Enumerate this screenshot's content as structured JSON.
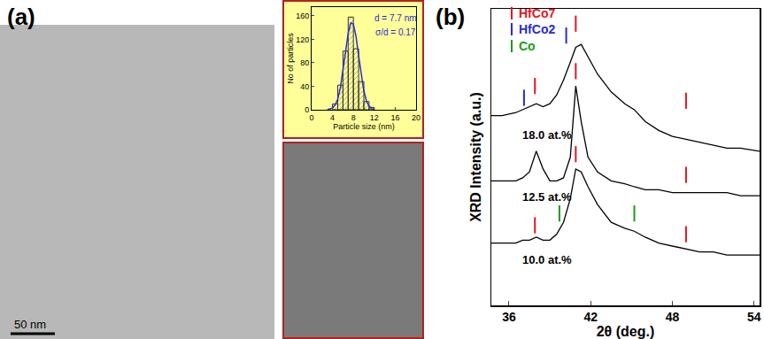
{
  "panels": {
    "a": {
      "label": "(a)",
      "scale_bar": "50 nm"
    },
    "b": {
      "label": "(b)"
    }
  },
  "chart_data": [
    {
      "type": "bar",
      "x_label": "Particle size (nm)",
      "y_label": "No of particles",
      "bins": [
        4,
        5,
        6,
        7,
        8,
        9,
        10,
        11,
        12
      ],
      "values": [
        10,
        42,
        100,
        158,
        104,
        48,
        14,
        4
      ],
      "color": "#e8e88a",
      "xlim": [
        0,
        20
      ],
      "xticks": [
        0,
        4,
        8,
        12,
        16,
        20
      ],
      "ylim": [
        0,
        175
      ],
      "yticks": [
        0,
        40,
        80,
        120,
        160
      ],
      "fit": {
        "type": "line",
        "color": "#2a2ad6",
        "x": [
          3,
          3.5,
          4,
          4.5,
          5,
          5.5,
          6,
          6.5,
          7,
          7.5,
          8,
          8.5,
          9,
          9.5,
          10,
          10.5,
          11,
          11.5,
          12
        ],
        "values": [
          0,
          1,
          3,
          8,
          18,
          37,
          65,
          99,
          130,
          148,
          146,
          125,
          92,
          58,
          32,
          15,
          6,
          2,
          1
        ]
      },
      "annotations": [
        {
          "text": "d = 7.7 nm",
          "color": "#2a2ad6"
        },
        {
          "text": "σ/d = 0.17",
          "color": "#2a2ad6"
        }
      ]
    },
    {
      "type": "line",
      "x_label": "2θ (deg.)",
      "y_label": "XRD Intensity (a.u.)",
      "xlim": [
        34.7,
        54.4
      ],
      "xticks": [
        36,
        42,
        48,
        54
      ],
      "ylim": [
        0,
        100
      ],
      "yticks": [],
      "tick_labels": "x",
      "x": [
        34.7,
        35.5,
        36.5,
        37,
        37.5,
        38,
        38.5,
        39,
        39.5,
        40,
        40.5,
        40.9,
        41.3,
        41.8,
        42.5,
        43.5,
        44.5,
        45.2,
        46,
        47,
        48,
        49,
        50,
        51,
        52,
        53,
        54.4
      ],
      "phases": [
        {
          "name": "HfCo7",
          "color": "#e8141c"
        },
        {
          "name": "HfCo2",
          "color": "#2a2ad6"
        },
        {
          "name": "Co",
          "color": "#1a9a1a"
        }
      ],
      "series": [
        {
          "name": "18.0 at.%",
          "color": "#000000",
          "values": [
            64,
            64,
            65,
            66,
            67,
            68,
            67,
            68,
            71,
            76,
            82,
            87,
            88,
            84,
            78,
            72,
            68,
            66,
            62,
            59,
            57,
            56,
            55,
            54,
            53,
            53,
            52
          ],
          "reflections": [
            {
              "phase": "HfCo2",
              "x": 37.1,
              "y": 70
            },
            {
              "phase": "HfCo7",
              "x": 37.9,
              "y": 74
            },
            {
              "phase": "HfCo2",
              "x": 40.2,
              "y": 91
            },
            {
              "phase": "HfCo7",
              "x": 40.9,
              "y": 95
            },
            {
              "phase": "HfCo7",
              "x": 49.0,
              "y": 69
            }
          ]
        },
        {
          "name": "12.5 at.%",
          "color": "#000000",
          "values": [
            42,
            42,
            42,
            43,
            45,
            52,
            46,
            42,
            42,
            43,
            50,
            74,
            62,
            50,
            45,
            42,
            41,
            40,
            39,
            39,
            38,
            38,
            38,
            38,
            38,
            37,
            37
          ],
          "reflections": [
            {
              "phase": "HfCo7",
              "x": 40.9,
              "y": 79
            },
            {
              "phase": "HfCo7",
              "x": 49.0,
              "y": 44
            }
          ]
        },
        {
          "name": "10.0 at.%",
          "color": "#000000",
          "values": [
            21,
            21,
            21,
            22,
            22,
            23,
            22,
            22,
            24,
            28,
            36,
            46,
            45,
            40,
            34,
            28,
            26,
            25,
            23,
            21,
            20,
            19,
            18,
            18,
            17,
            17,
            17
          ],
          "reflections": [
            {
              "phase": "HfCo7",
              "x": 37.9,
              "y": 27
            },
            {
              "phase": "Co",
              "x": 39.7,
              "y": 31
            },
            {
              "phase": "HfCo7",
              "x": 40.9,
              "y": 51
            },
            {
              "phase": "Co",
              "x": 45.2,
              "y": 31
            },
            {
              "phase": "HfCo7",
              "x": 49.0,
              "y": 24
            }
          ]
        }
      ]
    }
  ]
}
